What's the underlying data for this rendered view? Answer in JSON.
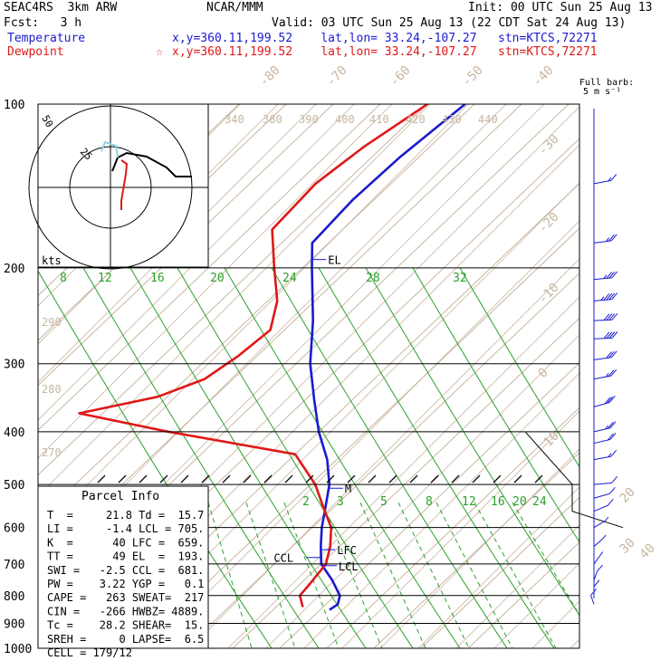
{
  "header": {
    "model": "SEAC4RS  3km ARW",
    "org": "NCAR/MMM",
    "init": "Init: 00 UTC Sun 25 Aug 13",
    "fcst": "Fcst:   3 h",
    "valid": "Valid: 03 UTC Sun 25 Aug 13 (22 CDT Sat 24 Aug 13)",
    "temp_label": "Temperature",
    "temp_info": "x,y=360.11,199.52    lat,lon= 33.24,-107.27   stn=KTCS,72271",
    "dew_label": "Dewpoint",
    "dew_star": "☆",
    "dew_info": "x,y=360.11,199.52    lat,lon= 33.24,-107.27   stn=KTCS,72271"
  },
  "barb_legend": {
    "line1": "Full barb:",
    "line2": "5 m s⁻¹"
  },
  "colors": {
    "temperature": "#1a1ad0",
    "dewpoint": "#e01818",
    "isotherm": "#c7b6a1",
    "mixing_ratio": "#2aa12a",
    "axes": "#000000",
    "barbs": "#1a1ad0"
  },
  "chart_data": {
    "type": "line",
    "title": "",
    "y_axis": {
      "scale": "log-pressure",
      "unit": "hPa",
      "ticks": [
        100,
        200,
        300,
        400,
        500,
        600,
        700,
        800,
        900,
        1000
      ]
    },
    "isotherm_labels": [
      "-80",
      "-70",
      "-60",
      "-50",
      "-40",
      "-30",
      "-20",
      "-10",
      "0",
      "10",
      "20",
      "30",
      "40"
    ],
    "theta_labels": [
      "340",
      "380",
      "390",
      "400",
      "410",
      "420",
      "430",
      "440",
      "290",
      "280",
      "270"
    ],
    "mixing_ratio_labels_upper": [
      "8",
      "12",
      "16",
      "20",
      "24",
      "28",
      "32"
    ],
    "mixing_ratio_labels_lower": [
      "2",
      "3",
      "5",
      "8",
      "12",
      "16",
      "20",
      "24"
    ],
    "series": [
      {
        "name": "Temperature",
        "color": "#1a1ad0",
        "points": [
          [
            100,
            -62
          ],
          [
            125,
            -64
          ],
          [
            150,
            -64.5
          ],
          [
            180,
            -63.5
          ],
          [
            200,
            -58
          ],
          [
            250,
            -46
          ],
          [
            300,
            -37
          ],
          [
            350,
            -28
          ],
          [
            400,
            -20
          ],
          [
            450,
            -12
          ],
          [
            500,
            -6
          ],
          [
            560,
            -1
          ],
          [
            600,
            2
          ],
          [
            650,
            6
          ],
          [
            700,
            10
          ],
          [
            750,
            16
          ],
          [
            800,
            21
          ],
          [
            830,
            22.5
          ],
          [
            850,
            22
          ]
        ]
      },
      {
        "name": "Dewpoint",
        "color": "#e01818",
        "points": [
          [
            100,
            -70
          ],
          [
            120,
            -74
          ],
          [
            140,
            -76
          ],
          [
            170,
            -75
          ],
          [
            200,
            -66
          ],
          [
            230,
            -58
          ],
          [
            260,
            -53
          ],
          [
            290,
            -54
          ],
          [
            320,
            -56
          ],
          [
            345,
            -62
          ],
          [
            370,
            -75
          ],
          [
            400,
            -52
          ],
          [
            440,
            -20
          ],
          [
            500,
            -9
          ],
          [
            560,
            -1
          ],
          [
            600,
            4
          ],
          [
            650,
            8
          ],
          [
            700,
            11
          ],
          [
            760,
            12
          ],
          [
            800,
            12.5
          ],
          [
            840,
            15.7
          ]
        ]
      }
    ],
    "markers": [
      {
        "label": "EL",
        "p": 193
      },
      {
        "label": "M",
        "p": 508
      },
      {
        "label": "LFC",
        "p": 659
      },
      {
        "label": "LCL",
        "p": 705
      },
      {
        "label": "CCL",
        "p": 681
      }
    ]
  },
  "hodograph": {
    "ring_label": "50",
    "label": "25",
    "units": "kts"
  },
  "parcel_info": {
    "title": "Parcel Info",
    "rows": [
      "T  =     21.8 Td =  15.7",
      "LI =     -1.4 LCL = 705.",
      "K  =      40 LFC =  659.",
      "TT =      49 EL  =  193.",
      "SWI =   -2.5 CCL =  681.",
      "PW =    3.22 YGP =   0.1",
      "CAPE =   263 SWEAT=  217",
      "CIN =   -266 HWBZ= 4889.",
      "Tc =    28.2 SHEAR=  15.",
      "SREH =     0 LAPSE=  6.5",
      "CELL = 179/12"
    ]
  },
  "wind_profile": [
    {
      "p": 140,
      "spd": 15,
      "dir": 250
    },
    {
      "p": 180,
      "spd": 25,
      "dir": 255
    },
    {
      "p": 210,
      "spd": 35,
      "dir": 260
    },
    {
      "p": 230,
      "spd": 45,
      "dir": 260
    },
    {
      "p": 250,
      "spd": 40,
      "dir": 265
    },
    {
      "p": 270,
      "spd": 40,
      "dir": 265
    },
    {
      "p": 295,
      "spd": 30,
      "dir": 255
    },
    {
      "p": 320,
      "spd": 25,
      "dir": 250
    },
    {
      "p": 360,
      "spd": 30,
      "dir": 240
    },
    {
      "p": 400,
      "spd": 25,
      "dir": 245
    },
    {
      "p": 420,
      "spd": 20,
      "dir": 245
    },
    {
      "p": 450,
      "spd": 15,
      "dir": 250
    },
    {
      "p": 500,
      "spd": 10,
      "dir": 260
    },
    {
      "p": 530,
      "spd": 10,
      "dir": 240
    },
    {
      "p": 560,
      "spd": 10,
      "dir": 230
    },
    {
      "p": 600,
      "spd": 5,
      "dir": 220
    },
    {
      "p": 650,
      "spd": 5,
      "dir": 210
    },
    {
      "p": 700,
      "spd": 5,
      "dir": 200
    },
    {
      "p": 750,
      "spd": 10,
      "dir": 190
    },
    {
      "p": 800,
      "spd": 10,
      "dir": 180
    },
    {
      "p": 830,
      "spd": 10,
      "dir": 170
    }
  ]
}
